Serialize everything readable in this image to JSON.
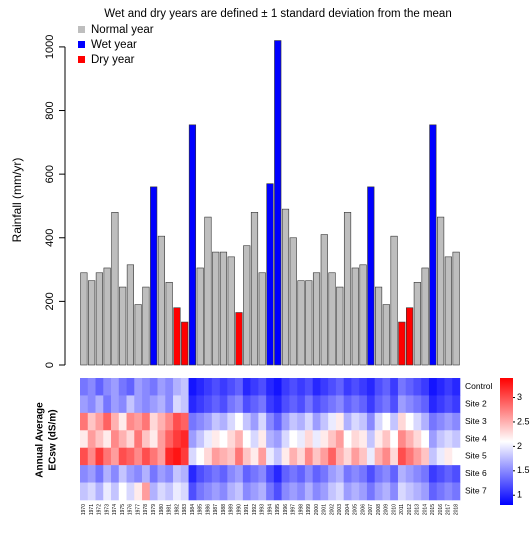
{
  "chart_data": [
    {
      "type": "bar",
      "title": "Wet and dry years are defined ± 1 standard deviation from the mean",
      "y_label": "Rainfall (mm/yr)",
      "ylim": [
        0,
        1050
      ],
      "yticks": [
        0,
        200,
        400,
        600,
        800,
        1000
      ],
      "series": [
        {
          "name": "Normal year",
          "color": "#bebebe",
          "values": [
            290,
            265,
            290,
            305,
            480,
            245,
            315,
            190,
            245,
            null,
            405,
            260,
            null,
            null,
            null,
            305,
            465,
            355,
            355,
            340,
            null,
            375,
            480,
            290,
            null,
            null,
            490,
            400,
            265,
            265,
            290,
            410,
            290,
            245,
            480,
            305,
            315,
            null,
            245,
            190,
            405,
            null,
            null,
            260,
            305,
            null,
            465,
            340,
            355
          ]
        },
        {
          "name": "Wet year",
          "color": "#0000ff",
          "values": [
            null,
            null,
            null,
            null,
            null,
            null,
            null,
            null,
            null,
            560,
            null,
            null,
            null,
            null,
            755,
            null,
            null,
            null,
            null,
            null,
            null,
            null,
            null,
            null,
            570,
            1020,
            null,
            null,
            null,
            null,
            null,
            null,
            null,
            null,
            null,
            null,
            null,
            560,
            null,
            null,
            null,
            null,
            null,
            null,
            null,
            755,
            null,
            null,
            null
          ]
        },
        {
          "name": "Dry year",
          "color": "#ff0000",
          "values": [
            null,
            null,
            null,
            null,
            null,
            null,
            null,
            null,
            null,
            null,
            null,
            null,
            180,
            135,
            null,
            null,
            null,
            null,
            null,
            null,
            165,
            null,
            null,
            null,
            null,
            null,
            null,
            null,
            null,
            null,
            null,
            null,
            null,
            null,
            null,
            null,
            null,
            null,
            null,
            null,
            null,
            135,
            180,
            null,
            null,
            null,
            null,
            null,
            null
          ]
        }
      ]
    },
    {
      "type": "heatmap",
      "y_label": [
        "Annual Average",
        "ECsw (dS/m)"
      ],
      "categories": [
        "1970",
        "1971",
        "1972",
        "1973",
        "1974",
        "1975",
        "1976",
        "1977",
        "1978",
        "1979",
        "1980",
        "1981",
        "1982",
        "1983",
        "1984",
        "1985",
        "1986",
        "1987",
        "1988",
        "1989",
        "1990",
        "1991",
        "1992",
        "1993",
        "1994",
        "1995",
        "1996",
        "1997",
        "1998",
        "1999",
        "2000",
        "2001",
        "2002",
        "2003",
        "2004",
        "2005",
        "2006",
        "2007",
        "2008",
        "2009",
        "2010",
        "2011",
        "2012",
        "2013",
        "2014",
        "2015",
        "2016",
        "2017",
        "2018"
      ],
      "rows": [
        "Control",
        "Site 2",
        "Site 3",
        "Site 4",
        "Site 5",
        "Site 6",
        "Site 7"
      ],
      "values": [
        [
          1.4,
          1.5,
          1.3,
          1.5,
          1.6,
          1.4,
          1.3,
          1.6,
          1.5,
          1.4,
          1.6,
          1.5,
          1.7,
          1.8,
          0.9,
          1.0,
          1.1,
          1.2,
          1.1,
          1.2,
          1.3,
          1.0,
          1.1,
          1.2,
          1.0,
          0.9,
          1.1,
          1.2,
          1.1,
          1.2,
          1.0,
          1.1,
          1.2,
          1.3,
          1.1,
          1.2,
          1.1,
          1.0,
          1.2,
          1.3,
          1.1,
          1.4,
          1.3,
          1.2,
          1.1,
          0.9,
          1.0,
          1.1,
          1.0
        ],
        [
          1.6,
          1.5,
          1.7,
          1.4,
          1.6,
          1.5,
          1.8,
          1.6,
          1.5,
          1.6,
          1.7,
          1.5,
          1.9,
          1.8,
          1.0,
          1.1,
          1.2,
          1.3,
          1.2,
          1.4,
          1.5,
          1.2,
          1.3,
          1.4,
          1.1,
          1.0,
          1.2,
          1.3,
          1.2,
          1.4,
          1.2,
          1.3,
          1.4,
          1.5,
          1.3,
          1.4,
          1.3,
          1.1,
          1.3,
          1.4,
          1.2,
          1.6,
          1.5,
          1.4,
          1.3,
          1.0,
          1.1,
          1.2,
          1.1
        ],
        [
          2.8,
          2.4,
          2.6,
          2.9,
          2.5,
          2.2,
          2.7,
          2.6,
          2.8,
          2.3,
          2.5,
          2.7,
          3.0,
          2.9,
          1.4,
          1.5,
          1.6,
          1.8,
          1.7,
          1.9,
          2.1,
          1.8,
          1.6,
          1.9,
          1.5,
          1.3,
          1.6,
          1.8,
          1.7,
          1.9,
          1.6,
          1.8,
          2.0,
          2.2,
          1.7,
          1.9,
          1.8,
          1.5,
          1.9,
          2.1,
          1.8,
          2.3,
          2.1,
          1.9,
          1.7,
          1.4,
          1.5,
          1.6,
          1.5
        ],
        [
          2.2,
          2.6,
          2.4,
          2.2,
          2.7,
          2.5,
          2.3,
          2.8,
          2.4,
          2.2,
          2.6,
          2.9,
          3.1,
          3.2,
          1.6,
          1.8,
          2.0,
          2.2,
          2.1,
          2.3,
          2.5,
          2.1,
          1.9,
          2.2,
          1.7,
          1.6,
          1.9,
          2.1,
          2.0,
          2.3,
          2.0,
          2.2,
          2.4,
          2.6,
          2.1,
          2.3,
          2.2,
          1.8,
          2.2,
          2.4,
          2.1,
          2.7,
          2.5,
          2.3,
          2.1,
          1.6,
          1.8,
          1.9,
          1.8
        ],
        [
          3.0,
          2.7,
          3.1,
          2.8,
          2.6,
          3.0,
          2.9,
          2.7,
          3.0,
          2.8,
          2.6,
          3.2,
          3.3,
          3.1,
          1.9,
          2.1,
          2.3,
          2.6,
          2.5,
          2.4,
          2.8,
          2.4,
          2.2,
          2.6,
          2.0,
          1.8,
          2.2,
          2.5,
          2.3,
          2.7,
          2.4,
          2.6,
          2.9,
          2.5,
          2.3,
          2.6,
          2.4,
          2.0,
          2.5,
          2.7,
          2.3,
          3.0,
          2.8,
          2.6,
          2.4,
          1.8,
          2.0,
          2.2,
          2.1
        ],
        [
          1.5,
          1.6,
          1.4,
          1.7,
          1.5,
          1.8,
          1.6,
          1.5,
          1.7,
          1.4,
          1.6,
          1.5,
          1.8,
          1.7,
          1.0,
          1.2,
          1.3,
          1.4,
          1.3,
          1.5,
          1.6,
          1.3,
          1.4,
          1.5,
          1.2,
          1.0,
          1.3,
          1.4,
          1.3,
          1.5,
          1.3,
          1.4,
          1.6,
          1.7,
          1.4,
          1.5,
          1.4,
          1.2,
          1.4,
          1.5,
          1.3,
          1.7,
          1.6,
          1.5,
          1.4,
          1.1,
          1.2,
          1.3,
          1.2
        ],
        [
          1.8,
          1.9,
          1.7,
          2.0,
          1.8,
          2.1,
          1.9,
          2.2,
          2.6,
          1.7,
          1.9,
          1.8,
          2.0,
          1.9,
          1.2,
          1.4,
          1.5,
          1.6,
          1.5,
          1.7,
          1.8,
          1.5,
          1.6,
          1.7,
          1.4,
          1.2,
          1.5,
          1.6,
          1.5,
          1.7,
          1.5,
          1.6,
          1.8,
          1.9,
          1.6,
          1.7,
          1.6,
          1.4,
          1.6,
          1.7,
          1.5,
          1.9,
          1.8,
          1.7,
          1.6,
          1.3,
          1.4,
          1.5,
          1.4
        ]
      ],
      "zlim": [
        0.8,
        3.4
      ],
      "zticks": [
        1,
        1.5,
        2,
        2.5,
        3
      ],
      "colors": [
        "#0000ff",
        "#ffffff",
        "#ff0000"
      ]
    }
  ]
}
